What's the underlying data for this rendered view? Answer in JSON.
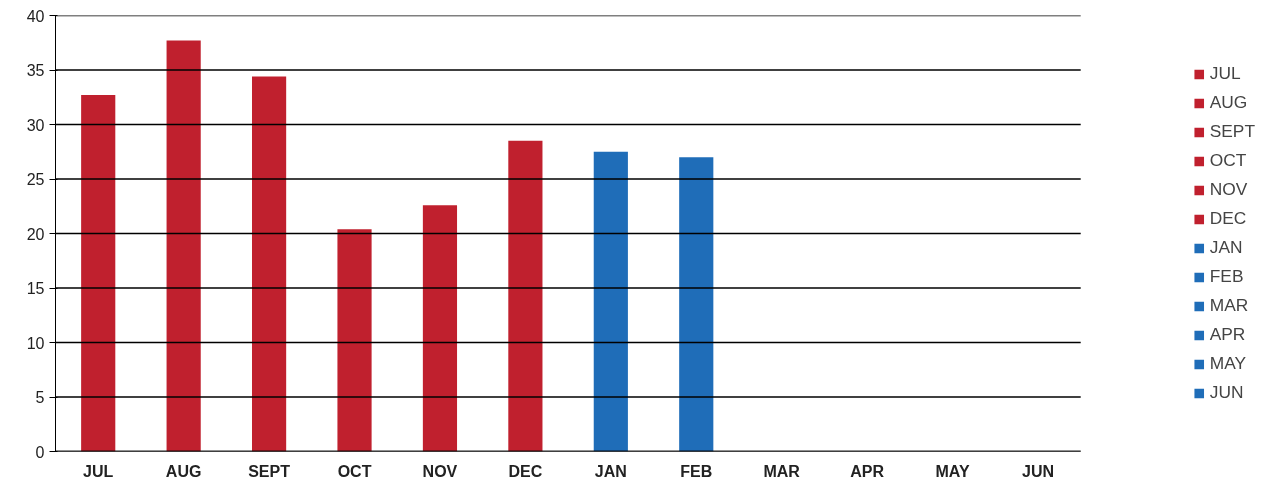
{
  "chart_data": {
    "type": "bar",
    "categories": [
      "JUL",
      "AUG",
      "SEPT",
      "OCT",
      "NOV",
      "DEC",
      "JAN",
      "FEB",
      "MAR",
      "APR",
      "MAY",
      "JUN"
    ],
    "series": [
      {
        "name": "JUL",
        "color": "#c0202e",
        "values": [
          32.7,
          null,
          null,
          null,
          null,
          null,
          null,
          null,
          null,
          null,
          null,
          null
        ]
      },
      {
        "name": "AUG",
        "color": "#c0202e",
        "values": [
          null,
          37.7,
          null,
          null,
          null,
          null,
          null,
          null,
          null,
          null,
          null,
          null
        ]
      },
      {
        "name": "SEPT",
        "color": "#c0202e",
        "values": [
          null,
          null,
          34.4,
          null,
          null,
          null,
          null,
          null,
          null,
          null,
          null,
          null
        ]
      },
      {
        "name": "OCT",
        "color": "#c0202e",
        "values": [
          null,
          null,
          null,
          20.4,
          null,
          null,
          null,
          null,
          null,
          null,
          null,
          null
        ]
      },
      {
        "name": "NOV",
        "color": "#c0202e",
        "values": [
          null,
          null,
          null,
          null,
          22.6,
          null,
          null,
          null,
          null,
          null,
          null,
          null
        ]
      },
      {
        "name": "DEC",
        "color": "#c0202e",
        "values": [
          null,
          null,
          null,
          null,
          null,
          28.5,
          null,
          null,
          null,
          null,
          null,
          null
        ]
      },
      {
        "name": "JAN",
        "color": "#1f6db8",
        "values": [
          null,
          null,
          null,
          null,
          null,
          null,
          27.5,
          null,
          null,
          null,
          null,
          null
        ]
      },
      {
        "name": "FEB",
        "color": "#1f6db8",
        "values": [
          null,
          null,
          null,
          null,
          null,
          null,
          null,
          27.0,
          null,
          null,
          null,
          null
        ]
      },
      {
        "name": "MAR",
        "color": "#1f6db8",
        "values": [
          null,
          null,
          null,
          null,
          null,
          null,
          null,
          null,
          null,
          null,
          null,
          null
        ]
      },
      {
        "name": "APR",
        "color": "#1f6db8",
        "values": [
          null,
          null,
          null,
          null,
          null,
          null,
          null,
          null,
          null,
          null,
          null,
          null
        ]
      },
      {
        "name": "MAY",
        "color": "#1f6db8",
        "values": [
          null,
          null,
          null,
          null,
          null,
          null,
          null,
          null,
          null,
          null,
          null,
          null
        ]
      },
      {
        "name": "JUN",
        "color": "#1f6db8",
        "values": [
          null,
          null,
          null,
          null,
          null,
          null,
          null,
          null,
          null,
          null,
          null,
          null
        ]
      }
    ],
    "ylim": [
      0,
      40
    ],
    "yticks": [
      0,
      5,
      10,
      15,
      20,
      25,
      30,
      35,
      40
    ],
    "grid": "y",
    "legend": "right"
  }
}
